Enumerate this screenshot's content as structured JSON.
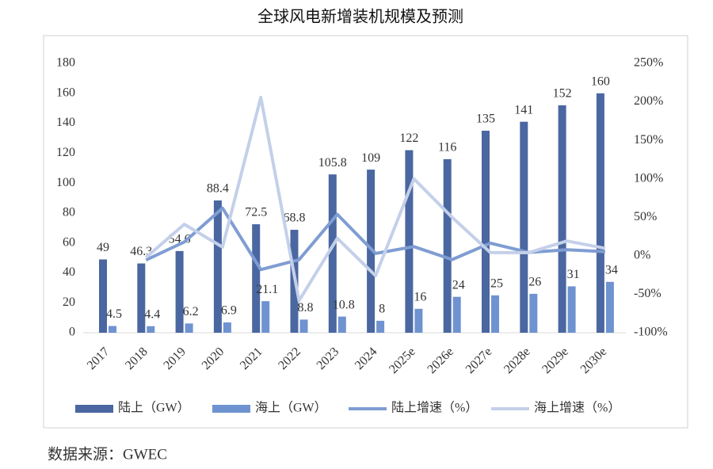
{
  "chart_data": {
    "type": "bar",
    "title": "全球风电新增装机规模及预测",
    "source": "数据来源：GWEC",
    "categories": [
      "2017",
      "2018",
      "2019",
      "2020",
      "2021",
      "2022",
      "2023",
      "2024",
      "2025e",
      "2026e",
      "2027e",
      "2028e",
      "2029e",
      "2030e"
    ],
    "series": [
      {
        "name": "陆上（GW）",
        "type": "bar",
        "color": "#4a67a1",
        "values": [
          49,
          46.3,
          54.6,
          88.4,
          72.5,
          68.8,
          105.8,
          109,
          122,
          116,
          135,
          141,
          152,
          160
        ]
      },
      {
        "name": "海上（GW）",
        "type": "bar",
        "color": "#6f93d0",
        "values": [
          4.5,
          4.4,
          6.2,
          6.9,
          21.1,
          8.8,
          10.8,
          8,
          16,
          24,
          25,
          26,
          31,
          34
        ]
      },
      {
        "name": "陆上增速（%）",
        "type": "line",
        "axis": "y2",
        "color": "#7f9dd2",
        "values": [
          null,
          -5.5,
          17.9,
          61.9,
          -18,
          -5.1,
          53.8,
          3,
          11.9,
          -4.9,
          16.4,
          4.4,
          7.8,
          5.3
        ]
      },
      {
        "name": "海上增速（%）",
        "type": "line",
        "axis": "y2",
        "color": "#c4d0e9",
        "values": [
          null,
          -2.2,
          40.9,
          11.3,
          205.8,
          -58.3,
          22.7,
          -25.9,
          100,
          50,
          4.2,
          4,
          19.2,
          9.7
        ]
      }
    ],
    "ylim": [
      0,
      180
    ],
    "yticks": [
      0,
      20,
      40,
      60,
      80,
      100,
      120,
      140,
      160,
      180
    ],
    "y2lim": [
      -100,
      250
    ],
    "y2ticks": [
      {
        "value": -100,
        "label": "-100%"
      },
      {
        "value": -50,
        "label": "-50%"
      },
      {
        "value": 0,
        "label": "0%"
      },
      {
        "value": 50,
        "label": "50%"
      },
      {
        "value": 100,
        "label": "100%"
      },
      {
        "value": 150,
        "label": "150%"
      },
      {
        "value": 200,
        "label": "200%"
      },
      {
        "value": 250,
        "label": "250%"
      }
    ],
    "legend": "bottom"
  }
}
